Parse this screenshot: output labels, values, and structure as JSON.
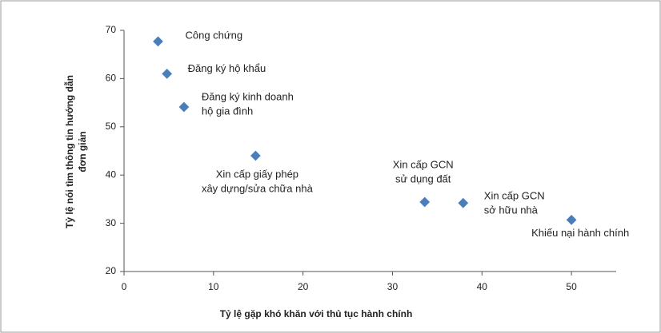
{
  "chart_data": {
    "type": "scatter",
    "xlabel": "Tỷ lệ gặp khó khăn với thủ tục hành chính",
    "ylabel": [
      "Tỷ lệ nói tìm thông tin hướng dẫn",
      "đơn giản"
    ],
    "x": [
      3.8,
      4.8,
      6.7,
      14.7,
      33.6,
      37.9,
      50
    ],
    "values": [
      67.7,
      61,
      54.1,
      44,
      34.4,
      34.2,
      30.7
    ],
    "point_labels": [
      [
        "Công chứng"
      ],
      [
        "Đăng ký hộ khẩu"
      ],
      [
        "Đăng ký kinh doanh",
        "hộ gia đình"
      ],
      [
        "Xin cấp giấy phép",
        "xây dựng/sửa chữa nhà"
      ],
      [
        "Xin cấp GCN",
        "sử dụng đất"
      ],
      [
        "Xin cấp GCN",
        "sở hữu nhà"
      ],
      [
        "Khiếu nại hành chính"
      ]
    ],
    "color": "#4a7ebb",
    "xlim": [
      0,
      55
    ],
    "xticks": [
      0,
      10,
      20,
      30,
      40,
      50
    ],
    "ylim": [
      20,
      70
    ],
    "yticks": [
      20,
      30,
      40,
      50,
      60,
      70
    ]
  }
}
